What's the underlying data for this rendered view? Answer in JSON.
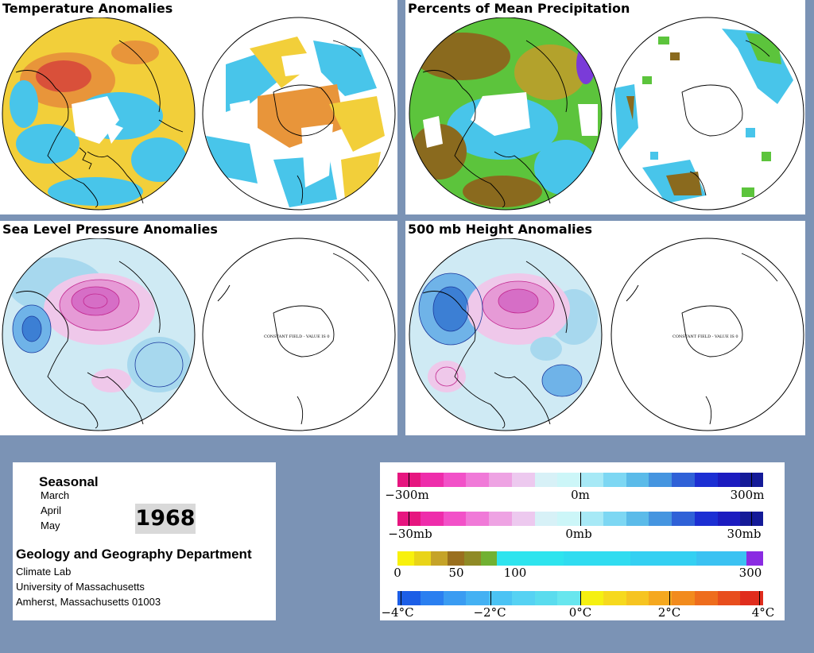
{
  "panels": {
    "temperature": {
      "title": "Temperature Anomalies"
    },
    "precip": {
      "title": "Percents of Mean Precipitation"
    },
    "slp": {
      "title": "Sea Level Pressure Anomalies",
      "constant_note": "CONSTANT FIELD - VALUE IS 0"
    },
    "height": {
      "title": "500 mb Height Anomalies",
      "constant_note": "CONSTANT FIELD - VALUE IS 0"
    }
  },
  "info": {
    "season_label": "Seasonal",
    "months": [
      "March",
      "April",
      "May"
    ],
    "year": "1968",
    "department": "Geology and Geography Department",
    "address_lines": [
      "Climate Lab",
      "University of Massachusetts",
      "Amherst, Massachusetts 01003"
    ]
  },
  "legends": {
    "height": {
      "labels": [
        "−300m",
        "0m",
        "300m"
      ]
    },
    "pressure": {
      "labels": [
        "−30mb",
        "0mb",
        "30mb"
      ]
    },
    "precip": {
      "labels": [
        "0",
        "50",
        "100",
        "300"
      ]
    },
    "temperature": {
      "labels": [
        "−4°C",
        "−2°C",
        "0°C",
        "2°C",
        "4°C"
      ]
    }
  },
  "colors": {
    "background": "#7b93b5",
    "temp_warm": "#f6d23a",
    "temp_hot": "#e0502a",
    "temp_cool": "#3cc4e8",
    "precip_green": "#5cc43c",
    "precip_brown": "#8a6a1e",
    "slp_fill": "#cfeaf4",
    "high_fill": "#e69ad6",
    "low_fill": "#6fb3e8"
  }
}
